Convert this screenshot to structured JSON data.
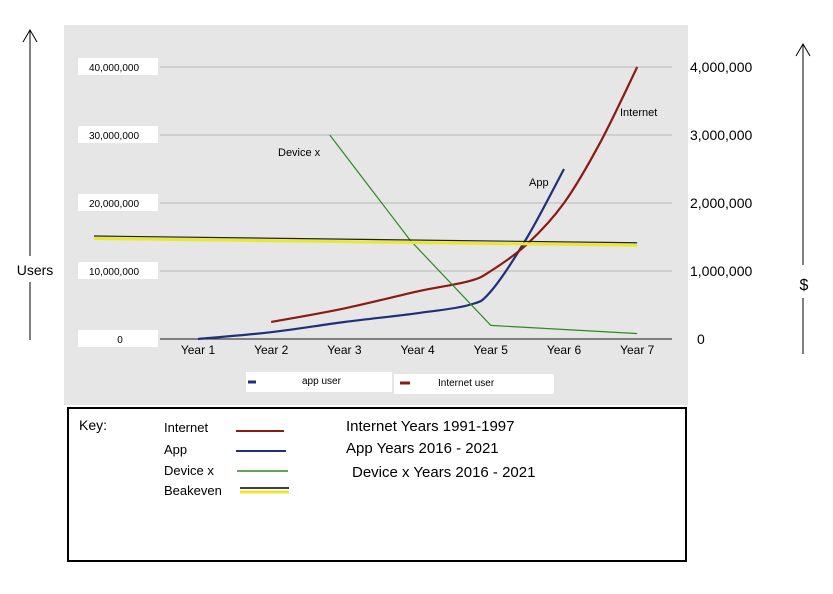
{
  "chart_data": {
    "type": "line",
    "categories": [
      "Year 1",
      "Year 2",
      "Year 3",
      "Year 4",
      "Year 5",
      "Year 6",
      "Year 7"
    ],
    "y_left": {
      "label": "Users",
      "ticks": [
        0,
        10000000,
        20000000,
        30000000,
        40000000
      ],
      "tick_labels": [
        "0",
        "10,000,000",
        "20,000,000",
        "30,000,000",
        "40,000,000"
      ],
      "range": [
        0,
        40000000
      ]
    },
    "y_right": {
      "label": "$",
      "ticks": [
        0,
        1000000,
        2000000,
        3000000,
        4000000
      ],
      "tick_labels": [
        "0",
        "1,000,000",
        "2,000,000",
        "3,000,000",
        "4,000,000"
      ],
      "range": [
        0,
        4000000
      ]
    },
    "series": [
      {
        "name": "app user",
        "label": "App",
        "color": "#1f2f7a",
        "x": [
          1,
          2,
          3,
          4,
          4.7,
          5,
          5.5,
          6
        ],
        "values": [
          0,
          1000000,
          2500000,
          3800000,
          5000000,
          7000000,
          15000000,
          25000000
        ]
      },
      {
        "name": "Internet user",
        "label": "Internet",
        "color": "#8b1a12",
        "x": [
          2,
          3,
          4,
          4.7,
          5,
          5.5,
          6,
          6.5,
          7
        ],
        "values": [
          2500000,
          4500000,
          7000000,
          8500000,
          10000000,
          14000000,
          20000000,
          29000000,
          40000000
        ]
      },
      {
        "name": "Device x",
        "label": "Device x",
        "color": "#2c8a1e",
        "x": [
          2.8,
          3.9,
          5,
          7
        ],
        "values": [
          30000000,
          14500000,
          2000000,
          800000
        ]
      },
      {
        "name": "Beakeven",
        "label": "",
        "color": "#e8e832",
        "x": [
          1,
          7
        ],
        "values": [
          15000000,
          14000000
        ]
      }
    ],
    "legend": [
      "app user",
      "Internet user"
    ],
    "legend_position": "bottom",
    "grid": true
  },
  "key": {
    "title": "Key:",
    "items": [
      {
        "name": "Internet",
        "color": "#8b1a12",
        "note": "Internet Years 1991-1997"
      },
      {
        "name": "App",
        "color": "#1f2f7a",
        "note": "App Years 2016 - 2021"
      },
      {
        "name": "Device x",
        "color": "#2c8a1e",
        "note": "Device x Years 2016 - 2021"
      },
      {
        "name": "Beakeven",
        "color": "#e8e832",
        "note": ""
      }
    ]
  }
}
